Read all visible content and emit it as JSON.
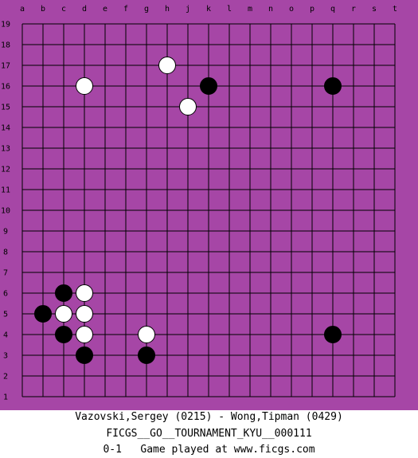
{
  "board": {
    "size": 19,
    "board_color": "#a646a6",
    "line_color": "#000000",
    "columns": [
      "a",
      "b",
      "c",
      "d",
      "e",
      "f",
      "g",
      "h",
      "j",
      "k",
      "l",
      "m",
      "n",
      "o",
      "p",
      "q",
      "r",
      "s",
      "t"
    ],
    "rows": [
      "19",
      "18",
      "17",
      "16",
      "15",
      "14",
      "13",
      "12",
      "11",
      "10",
      "9",
      "8",
      "7",
      "6",
      "5",
      "4",
      "3",
      "2",
      "1"
    ],
    "stones": [
      {
        "color": "white",
        "col": "h",
        "row": 17
      },
      {
        "color": "black",
        "col": "k",
        "row": 16
      },
      {
        "color": "white",
        "col": "d",
        "row": 16
      },
      {
        "color": "black",
        "col": "q",
        "row": 16
      },
      {
        "color": "white",
        "col": "j",
        "row": 15
      },
      {
        "color": "black",
        "col": "c",
        "row": 6
      },
      {
        "color": "white",
        "col": "d",
        "row": 6
      },
      {
        "color": "black",
        "col": "b",
        "row": 5
      },
      {
        "color": "white",
        "col": "c",
        "row": 5
      },
      {
        "color": "white",
        "col": "d",
        "row": 5
      },
      {
        "color": "black",
        "col": "c",
        "row": 4
      },
      {
        "color": "white",
        "col": "d",
        "row": 4
      },
      {
        "color": "white",
        "col": "g",
        "row": 4
      },
      {
        "color": "black",
        "col": "q",
        "row": 4
      },
      {
        "color": "black",
        "col": "d",
        "row": 3
      },
      {
        "color": "black",
        "col": "g",
        "row": 3
      }
    ]
  },
  "caption": {
    "players": "Vazovski,Sergey (0215) - Wong,Tipman (0429)",
    "event": "FICGS__GO__TOURNAMENT_KYU__000111",
    "result_line": "0-1   Game played at www.ficgs.com"
  }
}
